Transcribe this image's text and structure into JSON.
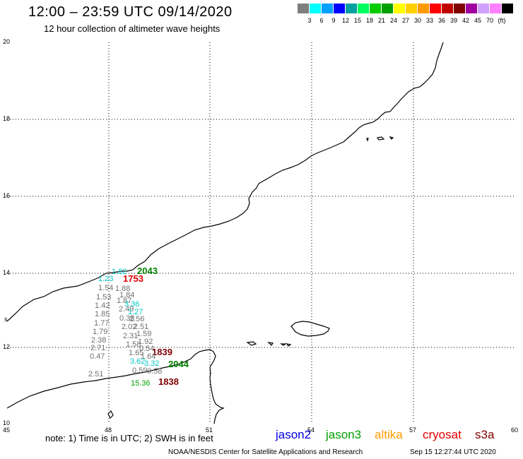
{
  "header": {
    "title": "12:00 – 23:59 UTC 09/14/2020",
    "subtitle": "12 hour collection of altimeter wave heights"
  },
  "legend": {
    "colors": [
      "#7f7f7f",
      "#00ffff",
      "#00a0ff",
      "#0000ff",
      "#00a0a0",
      "#00ff60",
      "#00cc00",
      "#00a000",
      "#ffff00",
      "#ffd000",
      "#ff9a00",
      "#ff0000",
      "#c00000",
      "#800000",
      "#a000a0",
      "#d0a0ff",
      "#ff80ff",
      "#000000"
    ],
    "labels": [
      "3",
      "6",
      "9",
      "12",
      "15",
      "18",
      "21",
      "24",
      "27",
      "30",
      "33",
      "36",
      "39",
      "42",
      "45",
      "70",
      "(ft)"
    ]
  },
  "axes": {
    "x_ticks": [
      "45",
      "48",
      "51",
      "54",
      "57",
      "60"
    ],
    "y_ticks": [
      "20",
      "18",
      "16",
      "14",
      "12",
      "10"
    ],
    "extra_y_label": "s"
  },
  "measurements": [
    {
      "text": "1.82",
      "color": "#00c8c8"
    },
    {
      "text": "2043",
      "color": "#008000"
    },
    {
      "text": "1.23",
      "color": "#00c8c8"
    },
    {
      "text": "1753",
      "color": "#e00000"
    },
    {
      "text": "1.54",
      "color": "#707070"
    },
    {
      "text": "1.88",
      "color": "#707070"
    },
    {
      "text": "1.53",
      "color": "#707070"
    },
    {
      "text": "1.84",
      "color": "#707070"
    },
    {
      "text": "1.42",
      "color": "#707070"
    },
    {
      "text": "1.87",
      "color": "#707070"
    },
    {
      "text": "3.36",
      "color": "#00c8c8"
    },
    {
      "text": "2.49",
      "color": "#707070"
    },
    {
      "text": "1.27",
      "color": "#00c8c8"
    },
    {
      "text": "1.85",
      "color": "#707070"
    },
    {
      "text": "0.38",
      "color": "#707070"
    },
    {
      "text": "2.56",
      "color": "#707070"
    },
    {
      "text": "1.77",
      "color": "#707070"
    },
    {
      "text": "2.02",
      "color": "#707070"
    },
    {
      "text": "2.51",
      "color": "#707070"
    },
    {
      "text": "1.79",
      "color": "#707070"
    },
    {
      "text": "2.31",
      "color": "#707070"
    },
    {
      "text": "1.59",
      "color": "#707070"
    },
    {
      "text": "2.38",
      "color": "#707070"
    },
    {
      "text": "1.92",
      "color": "#707070"
    },
    {
      "text": "2.71",
      "color": "#707070"
    },
    {
      "text": "1.58",
      "color": "#707070"
    },
    {
      "text": "0.54",
      "color": "#707070"
    },
    {
      "text": "1839",
      "color": "#800000"
    },
    {
      "text": "0.47",
      "color": "#707070"
    },
    {
      "text": "1.65",
      "color": "#707070"
    },
    {
      "text": "1.64",
      "color": "#707070"
    },
    {
      "text": "3.62",
      "color": "#00c8c8"
    },
    {
      "text": "3.32",
      "color": "#00c8c8"
    },
    {
      "text": "2044",
      "color": "#008000"
    },
    {
      "text": "0.59",
      "color": "#707070"
    },
    {
      "text": "0.58",
      "color": "#707070"
    },
    {
      "text": "2.51",
      "color": "#707070"
    },
    {
      "text": "15.36",
      "color": "#00a000"
    },
    {
      "text": "1838",
      "color": "#800000"
    }
  ],
  "footer": {
    "note": "note: 1) Time is in UTC; 2) SWH is in feet",
    "satellites": [
      {
        "name": "jason2",
        "color": "#0000e0"
      },
      {
        "name": "jason3",
        "color": "#00a000"
      },
      {
        "name": "altika",
        "color": "#ff9a00"
      },
      {
        "name": "cryosat",
        "color": "#e00000"
      },
      {
        "name": "s3a",
        "color": "#800000"
      }
    ],
    "credit": "NOAA/NESDIS Center for Satellite Applications and Research",
    "timestamp": "Sep 15 12:27:44 UTC 2020"
  }
}
